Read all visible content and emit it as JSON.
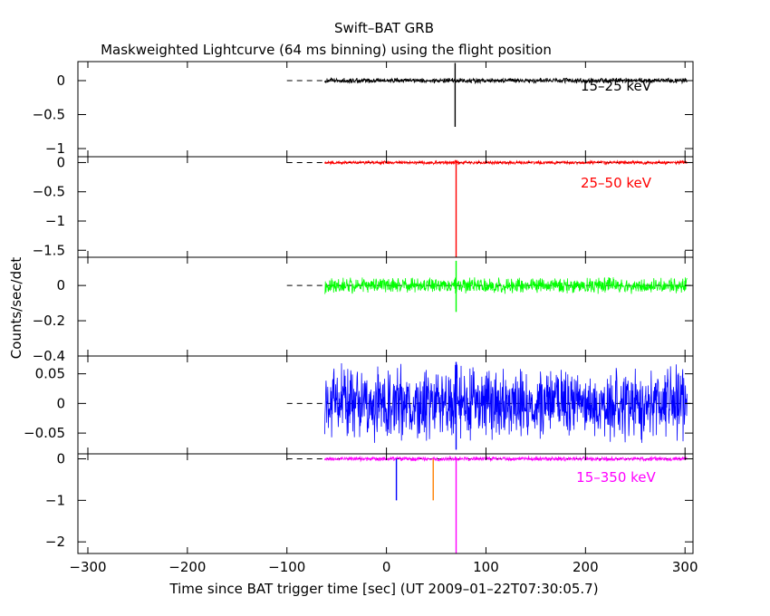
{
  "chart_data": {
    "type": "line",
    "title": "Swift–BAT GRB",
    "subtitle": "Maskweighted Lightcurve (64 ms binning) using the flight position",
    "xlabel": "Time since BAT trigger time [sec] (UT 2009–01–22T07:30:05.7)",
    "ylabel": "Counts/sec/det",
    "xlim": [
      -310,
      308
    ],
    "x_ticks": [
      -300,
      -200,
      -100,
      0,
      100,
      200,
      300
    ],
    "x_tick_labels": [
      "−300",
      "−200",
      "−100",
      "0",
      "100",
      "200",
      "300"
    ],
    "data_x_range": [
      -62,
      302
    ],
    "grid": false,
    "zero_reference_line": "dashed",
    "panels": [
      {
        "label": "15–25 keV",
        "color": "#000000",
        "ylim": [
          -1.12,
          0.28
        ],
        "y_ticks": [
          0,
          -0.5,
          -1
        ],
        "y_tick_labels": [
          "0",
          "−0.5",
          "−1"
        ],
        "noise_amplitude": 0.045,
        "spikes": [
          {
            "x": 69,
            "y_min": -0.68,
            "y_max": 0.26
          }
        ]
      },
      {
        "label": "25–50 keV",
        "color": "#ff0000",
        "ylim": [
          -1.62,
          0.1
        ],
        "y_ticks": [
          0,
          -0.5,
          -1,
          -1.5
        ],
        "y_tick_labels": [
          "0",
          "−0.5",
          "−1",
          "−1.5"
        ],
        "noise_amplitude": 0.035,
        "spikes": [
          {
            "x": 70,
            "y_min": -1.62,
            "y_max": 0.04
          }
        ]
      },
      {
        "label": "",
        "color": "#00ff00",
        "ylim": [
          -0.4,
          0.16
        ],
        "y_ticks": [
          0,
          -0.2,
          -0.4
        ],
        "y_tick_labels": [
          "0",
          "−0.2",
          "−0.4"
        ],
        "noise_amplitude": 0.05,
        "spikes": [
          {
            "x": 70,
            "y_min": -0.15,
            "y_max": 0.14
          }
        ]
      },
      {
        "label": "",
        "color": "#0000ff",
        "ylim": [
          -0.085,
          0.08
        ],
        "y_ticks": [
          0.05,
          0,
          -0.05
        ],
        "y_tick_labels": [
          "0.05",
          "0",
          "−0.05"
        ],
        "noise_amplitude": 0.07,
        "spikes": [
          {
            "x": 70,
            "y_min": -0.078,
            "y_max": 0.07
          }
        ]
      },
      {
        "label": "15–350 keV",
        "color": "#ff00ff",
        "ylim": [
          -2.28,
          0.12
        ],
        "y_ticks": [
          0,
          -1,
          -2
        ],
        "y_tick_labels": [
          "0",
          "−1",
          "−2"
        ],
        "noise_amplitude": 0.06,
        "spikes": [
          {
            "x": 70,
            "y_min": -2.28,
            "y_max": 0.04,
            "color": "#ff00ff"
          },
          {
            "x": 10,
            "y_min": -1.0,
            "y_max": 0.0,
            "color": "#0000ff"
          },
          {
            "x": 47,
            "y_min": -1.0,
            "y_max": 0.0,
            "color": "#ff8000"
          }
        ]
      }
    ]
  }
}
